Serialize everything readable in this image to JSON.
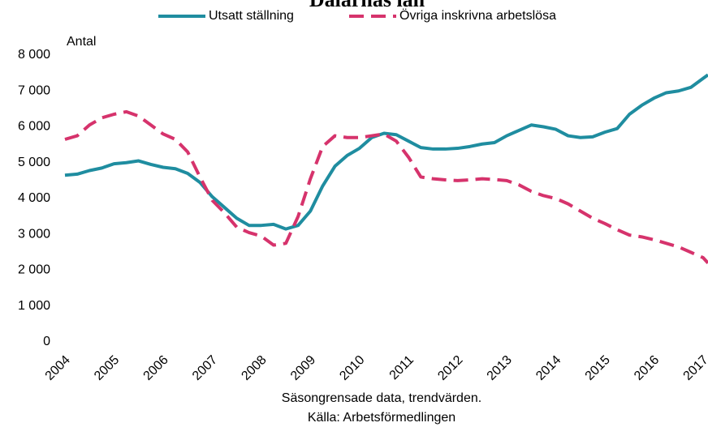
{
  "chart_data": {
    "type": "line",
    "title": "Dalarnas län",
    "y_label": "Antal",
    "notes": [
      "Säsongrensade data, trendvärden.",
      "Källa: Arbetsförmedlingen"
    ],
    "x": [
      2004,
      2004.25,
      2004.5,
      2004.75,
      2005,
      2005.25,
      2005.5,
      2005.75,
      2006,
      2006.25,
      2006.5,
      2006.75,
      2007,
      2007.25,
      2007.5,
      2007.75,
      2008,
      2008.25,
      2008.5,
      2008.75,
      2009,
      2009.25,
      2009.5,
      2009.75,
      2010,
      2010.25,
      2010.5,
      2010.75,
      2011,
      2011.25,
      2011.5,
      2011.75,
      2012,
      2012.25,
      2012.5,
      2012.75,
      2013,
      2013.25,
      2013.5,
      2013.75,
      2014,
      2014.25,
      2014.5,
      2014.75,
      2015,
      2015.25,
      2015.5,
      2015.75,
      2016,
      2016.25,
      2016.5,
      2016.75,
      2017,
      2017.1
    ],
    "series": [
      {
        "name": "Utsatt ställning",
        "color": "#1f8da0",
        "dash": false,
        "values": [
          4650,
          4680,
          4780,
          4850,
          4970,
          5000,
          5050,
          4950,
          4870,
          4830,
          4700,
          4450,
          4050,
          3750,
          3450,
          3250,
          3250,
          3280,
          3150,
          3250,
          3650,
          4350,
          4900,
          5200,
          5400,
          5700,
          5820,
          5780,
          5600,
          5420,
          5380,
          5380,
          5400,
          5450,
          5520,
          5560,
          5750,
          5900,
          6050,
          6000,
          5930,
          5750,
          5700,
          5720,
          5850,
          5950,
          6350,
          6600,
          6800,
          6950,
          7000,
          7100,
          7350,
          7450
        ]
      },
      {
        "name": "Övriga inskrivna arbetslösa",
        "color": "#d6336c",
        "dash": true,
        "values": [
          5650,
          5750,
          6050,
          6250,
          6350,
          6420,
          6300,
          6050,
          5800,
          5650,
          5300,
          4600,
          3950,
          3600,
          3200,
          3050,
          2950,
          2700,
          2750,
          3500,
          4550,
          5450,
          5750,
          5700,
          5700,
          5750,
          5800,
          5600,
          5150,
          4600,
          4550,
          4520,
          4500,
          4520,
          4550,
          4530,
          4500,
          4380,
          4200,
          4080,
          4000,
          3850,
          3650,
          3450,
          3300,
          3130,
          2980,
          2930,
          2850,
          2750,
          2650,
          2500,
          2350,
          2200
        ]
      }
    ],
    "xlim": [
      2004,
      2017.1
    ],
    "xticks": [
      2004,
      2005,
      2006,
      2007,
      2008,
      2009,
      2010,
      2011,
      2012,
      2013,
      2014,
      2015,
      2016,
      2017
    ],
    "ylim": [
      0,
      8000
    ],
    "yticks": [
      0,
      {
        "value": 1000,
        "label": "1 000"
      },
      {
        "value": 2000,
        "label": "2 000"
      },
      {
        "value": 3000,
        "label": "3 000"
      },
      {
        "value": 4000,
        "label": "4 000"
      },
      {
        "value": 5000,
        "label": "5 000"
      },
      {
        "value": 6000,
        "label": "6 000"
      },
      {
        "value": 7000,
        "label": "7 000"
      },
      {
        "value": 8000,
        "label": "8 000"
      }
    ],
    "grid": false
  }
}
